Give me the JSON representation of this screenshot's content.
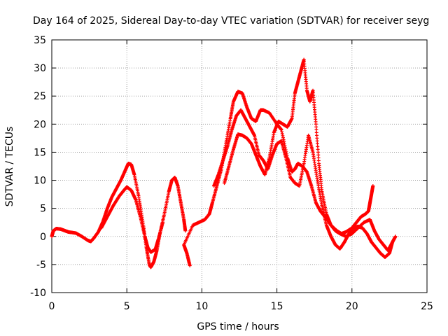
{
  "chart_data": {
    "type": "scatter",
    "title": "Day 164 of 2025, Sidereal Day-to-day VTEC variation (SDTVAR) for receiver seyg",
    "xlabel": "GPS time / hours",
    "ylabel": "SDTVAR / TECUs",
    "xlim": [
      0,
      25
    ],
    "ylim": [
      -10,
      35
    ],
    "xticks": [
      0,
      5,
      10,
      15,
      20,
      25
    ],
    "yticks": [
      -10,
      -5,
      0,
      5,
      10,
      15,
      20,
      25,
      30,
      35
    ],
    "grid": true,
    "marker": "+",
    "color": "#ff0000",
    "series": [
      {
        "name": "trace-a",
        "points": [
          [
            0.0,
            0.0
          ],
          [
            0.1,
            1.0
          ],
          [
            0.3,
            1.4
          ],
          [
            0.6,
            1.3
          ],
          [
            0.9,
            1.0
          ],
          [
            1.1,
            0.8
          ],
          [
            1.6,
            0.6
          ],
          [
            2.0,
            0.0
          ],
          [
            2.4,
            -0.7
          ],
          [
            2.6,
            -0.9
          ],
          [
            2.8,
            -0.3
          ],
          [
            3.1,
            0.8
          ],
          [
            3.4,
            2.6
          ],
          [
            3.7,
            5.0
          ],
          [
            4.0,
            7.0
          ],
          [
            4.3,
            8.5
          ],
          [
            4.6,
            10.0
          ],
          [
            4.9,
            11.8
          ],
          [
            5.1,
            13.0
          ],
          [
            5.3,
            12.8
          ],
          [
            5.5,
            11.0
          ],
          [
            5.8,
            7.0
          ],
          [
            6.1,
            2.0
          ],
          [
            6.3,
            -2.0
          ],
          [
            6.5,
            -5.0
          ],
          [
            6.6,
            -5.5
          ],
          [
            6.8,
            -4.5
          ],
          [
            7.0,
            -2.5
          ],
          [
            7.2,
            0.5
          ],
          [
            7.5,
            4.0
          ],
          [
            7.8,
            8.0
          ],
          [
            8.0,
            10.0
          ],
          [
            8.2,
            10.5
          ],
          [
            8.4,
            9.0
          ],
          [
            8.6,
            6.0
          ],
          [
            8.8,
            3.0
          ],
          [
            8.9,
            1.0
          ]
        ]
      },
      {
        "name": "trace-b",
        "points": [
          [
            3.3,
            1.5
          ],
          [
            3.7,
            3.5
          ],
          [
            4.1,
            5.5
          ],
          [
            4.5,
            7.2
          ],
          [
            4.8,
            8.2
          ],
          [
            5.0,
            8.8
          ],
          [
            5.3,
            8.2
          ],
          [
            5.6,
            6.5
          ],
          [
            5.9,
            3.5
          ],
          [
            6.2,
            0.0
          ],
          [
            6.4,
            -2.0
          ],
          [
            6.6,
            -2.8
          ],
          [
            6.9,
            -2.3
          ],
          [
            7.1,
            -0.5
          ],
          [
            7.4,
            2.5
          ]
        ]
      },
      {
        "name": "trace-c",
        "points": [
          [
            9.2,
            -5.2
          ],
          [
            9.0,
            -3.0
          ],
          [
            8.8,
            -1.5
          ],
          [
            9.4,
            2.0
          ],
          [
            9.8,
            2.5
          ],
          [
            10.2,
            3.0
          ],
          [
            10.5,
            4.0
          ],
          [
            10.7,
            6.0
          ],
          [
            11.0,
            9.0
          ],
          [
            11.3,
            12.0
          ],
          [
            11.6,
            16.5
          ],
          [
            11.9,
            21.0
          ],
          [
            12.1,
            24.0
          ],
          [
            12.4,
            25.8
          ],
          [
            12.7,
            25.5
          ],
          [
            13.0,
            23.0
          ],
          [
            13.3,
            21.0
          ],
          [
            13.6,
            20.5
          ],
          [
            13.9,
            22.5
          ],
          [
            14.1,
            22.5
          ],
          [
            14.5,
            22.0
          ],
          [
            15.0,
            20.0
          ],
          [
            15.3,
            19.0
          ],
          [
            15.7,
            14.0
          ],
          [
            16.0,
            11.5
          ],
          [
            16.2,
            12.0
          ],
          [
            16.4,
            13.0
          ],
          [
            16.7,
            12.5
          ],
          [
            17.0,
            11.5
          ],
          [
            17.3,
            9.0
          ],
          [
            17.6,
            6.0
          ],
          [
            17.9,
            4.5
          ],
          [
            18.2,
            3.5
          ],
          [
            18.6,
            2.0
          ],
          [
            19.0,
            1.0
          ],
          [
            19.3,
            0.5
          ],
          [
            19.6,
            0.8
          ],
          [
            20.0,
            1.5
          ],
          [
            20.3,
            2.5
          ],
          [
            20.6,
            3.5
          ],
          [
            20.9,
            4.0
          ],
          [
            21.1,
            4.5
          ],
          [
            21.2,
            6.0
          ],
          [
            21.3,
            7.5
          ],
          [
            21.4,
            9.0
          ]
        ]
      },
      {
        "name": "trace-d",
        "points": [
          [
            10.8,
            9.0
          ],
          [
            11.1,
            11.0
          ],
          [
            11.4,
            13.5
          ],
          [
            11.7,
            16.0
          ],
          [
            12.0,
            19.0
          ],
          [
            12.3,
            21.5
          ],
          [
            12.6,
            22.5
          ],
          [
            12.9,
            21.0
          ],
          [
            13.2,
            19.5
          ],
          [
            13.5,
            18.0
          ],
          [
            13.8,
            14.5
          ],
          [
            14.1,
            13.5
          ],
          [
            14.4,
            12.0
          ],
          [
            14.7,
            14.5
          ],
          [
            15.0,
            16.5
          ],
          [
            15.3,
            17.0
          ],
          [
            15.6,
            14.0
          ],
          [
            15.9,
            10.5
          ],
          [
            16.2,
            9.5
          ],
          [
            16.5,
            9.0
          ],
          [
            16.8,
            13.0
          ],
          [
            17.1,
            18.0
          ],
          [
            17.4,
            15.0
          ],
          [
            17.7,
            10.0
          ],
          [
            18.0,
            5.5
          ],
          [
            18.3,
            2.0
          ],
          [
            18.6,
            0.0
          ],
          [
            18.9,
            -1.5
          ],
          [
            19.2,
            -2.2
          ],
          [
            19.5,
            -1.0
          ],
          [
            19.8,
            0.5
          ],
          [
            20.1,
            1.5
          ],
          [
            20.4,
            1.8
          ],
          [
            20.7,
            1.5
          ],
          [
            21.0,
            0.5
          ],
          [
            21.3,
            -1.0
          ],
          [
            21.6,
            -2.0
          ],
          [
            21.9,
            -3.0
          ],
          [
            22.2,
            -3.7
          ],
          [
            22.5,
            -3.0
          ],
          [
            22.7,
            -1.0
          ]
        ]
      },
      {
        "name": "trace-e",
        "points": [
          [
            11.5,
            9.5
          ],
          [
            11.8,
            12.5
          ],
          [
            12.1,
            15.5
          ],
          [
            12.4,
            18.2
          ],
          [
            12.7,
            18.0
          ],
          [
            13.0,
            17.5
          ],
          [
            13.3,
            16.5
          ],
          [
            13.6,
            14.5
          ],
          [
            13.9,
            12.5
          ],
          [
            14.2,
            11.0
          ],
          [
            14.5,
            14.0
          ],
          [
            14.8,
            18.5
          ],
          [
            15.1,
            20.5
          ],
          [
            15.4,
            20.0
          ],
          [
            15.7,
            19.5
          ],
          [
            16.0,
            21.0
          ],
          [
            16.2,
            25.5
          ],
          [
            16.4,
            27.5
          ],
          [
            16.6,
            29.5
          ],
          [
            16.8,
            31.5
          ],
          [
            17.0,
            26.0
          ],
          [
            17.2,
            24.0
          ],
          [
            17.4,
            26.0
          ],
          [
            17.6,
            20.0
          ],
          [
            17.8,
            13.0
          ],
          [
            18.0,
            8.0
          ],
          [
            18.3,
            4.0
          ],
          [
            18.6,
            2.0
          ],
          [
            18.9,
            1.0
          ],
          [
            19.2,
            0.5
          ],
          [
            19.6,
            0.0
          ],
          [
            20.0,
            0.5
          ],
          [
            20.4,
            1.5
          ],
          [
            20.8,
            2.5
          ],
          [
            21.2,
            3.0
          ],
          [
            21.5,
            1.0
          ],
          [
            21.8,
            -0.5
          ],
          [
            22.1,
            -1.5
          ],
          [
            22.4,
            -2.5
          ],
          [
            22.7,
            -1.0
          ],
          [
            22.9,
            0.0
          ]
        ]
      }
    ]
  }
}
